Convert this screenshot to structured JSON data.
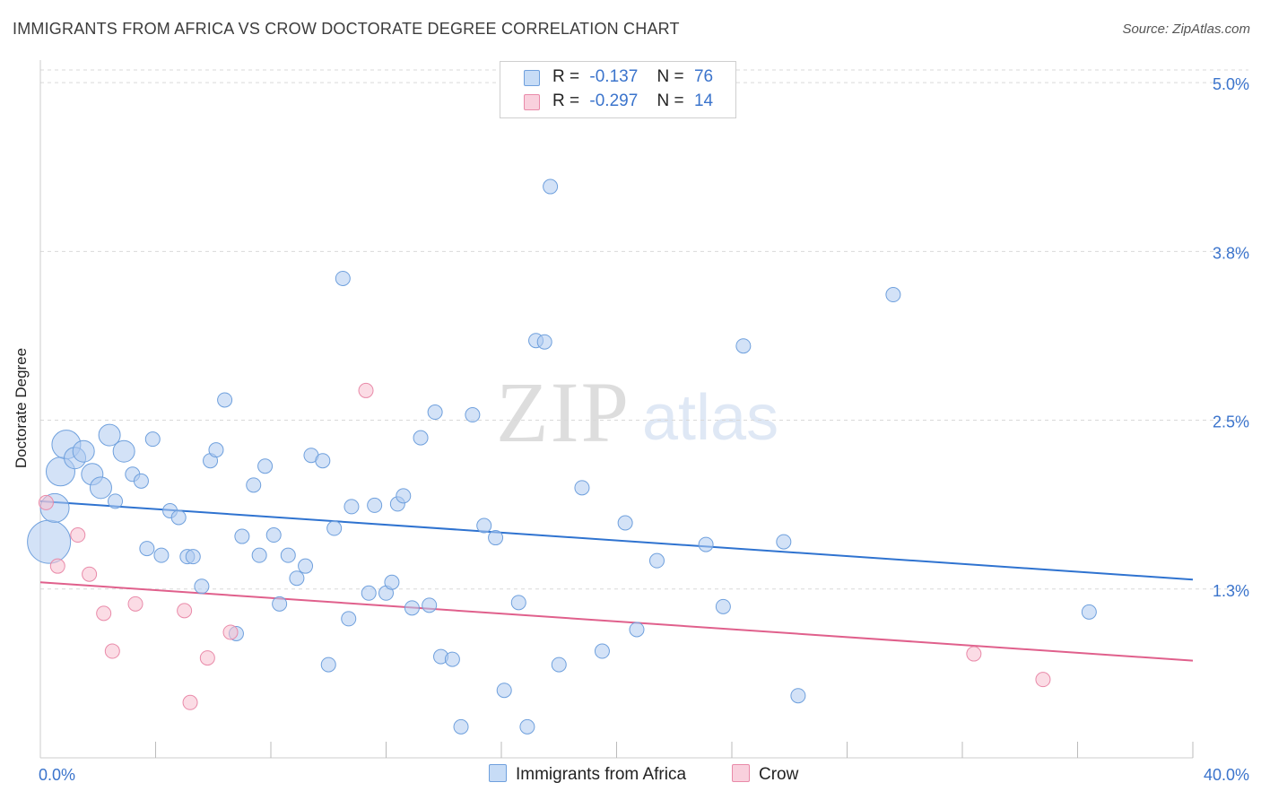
{
  "header": {
    "title": "IMMIGRANTS FROM AFRICA VS CROW DOCTORATE DEGREE CORRELATION CHART",
    "source": "Source: ZipAtlas.com"
  },
  "watermark": {
    "zip": "ZIP",
    "atlas": "atlas"
  },
  "legend": {
    "rows": [
      {
        "r_label": "R =",
        "r_value": "-0.137",
        "n_label": "N =",
        "n_value": "76",
        "color": "#aecbf0"
      },
      {
        "r_label": "R =",
        "r_value": "-0.297",
        "n_label": "N =",
        "n_value": "14",
        "color": "#f7bfd0"
      }
    ]
  },
  "bottom_legend": {
    "africa": "Immigrants from Africa",
    "crow": "Crow"
  },
  "colors": {
    "africa_fill": "#aecbf0",
    "africa_stroke": "#6fa0dd",
    "africa_line": "#2f73d0",
    "crow_fill": "#f7bfd0",
    "crow_stroke": "#e98aa9",
    "crow_line": "#e0608c",
    "tick_text": "#3b74cc",
    "grid": "#d9d9d9"
  },
  "chart_data": {
    "type": "scatter",
    "title": "IMMIGRANTS FROM AFRICA VS CROW DOCTORATE DEGREE CORRELATION CHART",
    "xlabel": "",
    "ylabel": "Doctorate Degree",
    "xlim": [
      0,
      40
    ],
    "ylim": [
      0,
      5.2
    ],
    "x_tick_labels": [
      {
        "value": 0,
        "label": "0.0%"
      },
      {
        "value": 40,
        "label": "40.0%"
      }
    ],
    "y_tick_labels": [
      {
        "value": 1.25,
        "label": "1.3%"
      },
      {
        "value": 2.5,
        "label": "2.5%"
      },
      {
        "value": 3.75,
        "label": "3.8%"
      },
      {
        "value": 5.0,
        "label": "5.0%"
      }
    ],
    "x_minor_ticks": [
      4,
      8,
      12,
      16,
      20,
      24,
      28,
      32,
      36,
      40
    ],
    "series": [
      {
        "name": "Immigrants from Africa",
        "r": -0.137,
        "n": 76,
        "trend": {
          "x": [
            0,
            40
          ],
          "y": [
            1.9,
            1.32
          ]
        },
        "points": [
          [
            0.3,
            1.6,
            3
          ],
          [
            0.5,
            1.85,
            2
          ],
          [
            0.7,
            2.12,
            2
          ],
          [
            0.9,
            2.32,
            2
          ],
          [
            1.2,
            2.22,
            1.5
          ],
          [
            1.5,
            2.27,
            1.5
          ],
          [
            1.8,
            2.1,
            1.5
          ],
          [
            2.1,
            2.0,
            1.5
          ],
          [
            2.4,
            2.39,
            1.5
          ],
          [
            2.6,
            1.9,
            1
          ],
          [
            2.9,
            2.27,
            1.5
          ],
          [
            3.2,
            2.1,
            1
          ],
          [
            3.5,
            2.05,
            1
          ],
          [
            3.7,
            1.55,
            1
          ],
          [
            3.9,
            2.36,
            1
          ],
          [
            4.2,
            1.5,
            1
          ],
          [
            4.5,
            1.83,
            1
          ],
          [
            4.8,
            1.78,
            1
          ],
          [
            5.1,
            1.49,
            1
          ],
          [
            5.3,
            1.49,
            1
          ],
          [
            5.6,
            1.27,
            1
          ],
          [
            5.9,
            2.2,
            1
          ],
          [
            6.1,
            2.28,
            1
          ],
          [
            6.4,
            2.65,
            1
          ],
          [
            6.8,
            0.92,
            1
          ],
          [
            7.0,
            1.64,
            1
          ],
          [
            7.4,
            2.02,
            1
          ],
          [
            7.6,
            1.5,
            1
          ],
          [
            7.8,
            2.16,
            1
          ],
          [
            8.1,
            1.65,
            1
          ],
          [
            8.3,
            1.14,
            1
          ],
          [
            8.6,
            1.5,
            1
          ],
          [
            8.9,
            1.33,
            1
          ],
          [
            9.2,
            1.42,
            1
          ],
          [
            9.4,
            2.24,
            1
          ],
          [
            9.8,
            2.2,
            1
          ],
          [
            10.0,
            0.69,
            1
          ],
          [
            10.2,
            1.7,
            1
          ],
          [
            10.5,
            3.55,
            1
          ],
          [
            10.7,
            1.03,
            1
          ],
          [
            10.8,
            1.86,
            1
          ],
          [
            11.4,
            1.22,
            1
          ],
          [
            11.6,
            1.87,
            1
          ],
          [
            12.0,
            1.22,
            1
          ],
          [
            12.2,
            1.3,
            1
          ],
          [
            12.4,
            1.88,
            1
          ],
          [
            12.6,
            1.94,
            1
          ],
          [
            12.9,
            1.11,
            1
          ],
          [
            13.2,
            2.37,
            1
          ],
          [
            13.5,
            1.13,
            1
          ],
          [
            13.7,
            2.56,
            1
          ],
          [
            13.9,
            0.75,
            1
          ],
          [
            14.3,
            0.73,
            1
          ],
          [
            14.6,
            0.23,
            1
          ],
          [
            15.0,
            2.54,
            1
          ],
          [
            15.4,
            1.72,
            1
          ],
          [
            15.8,
            1.63,
            1
          ],
          [
            16.1,
            0.5,
            1
          ],
          [
            16.6,
            1.15,
            1
          ],
          [
            16.9,
            0.23,
            1
          ],
          [
            17.2,
            3.09,
            1
          ],
          [
            17.5,
            3.08,
            1
          ],
          [
            17.7,
            4.23,
            1
          ],
          [
            18.0,
            0.69,
            1
          ],
          [
            18.8,
            2.0,
            1
          ],
          [
            19.5,
            0.79,
            1
          ],
          [
            20.3,
            1.74,
            1
          ],
          [
            20.7,
            0.95,
            1
          ],
          [
            21.4,
            1.46,
            1
          ],
          [
            23.1,
            1.58,
            1
          ],
          [
            23.7,
            1.12,
            1
          ],
          [
            24.4,
            3.05,
            1
          ],
          [
            25.8,
            1.6,
            1
          ],
          [
            26.3,
            0.46,
            1
          ],
          [
            29.6,
            3.43,
            1
          ],
          [
            36.4,
            1.08,
            1
          ]
        ]
      },
      {
        "name": "Crow",
        "r": -0.297,
        "n": 14,
        "trend": {
          "x": [
            0,
            40
          ],
          "y": [
            1.3,
            0.72
          ]
        },
        "points": [
          [
            0.2,
            1.89,
            1
          ],
          [
            0.6,
            1.42,
            1
          ],
          [
            1.3,
            1.65,
            1
          ],
          [
            1.7,
            1.36,
            1
          ],
          [
            2.2,
            1.07,
            1
          ],
          [
            2.5,
            0.79,
            1
          ],
          [
            3.3,
            1.14,
            1
          ],
          [
            5.0,
            1.09,
            1
          ],
          [
            5.2,
            0.41,
            1
          ],
          [
            5.8,
            0.74,
            1
          ],
          [
            6.6,
            0.93,
            1
          ],
          [
            11.3,
            2.72,
            1
          ],
          [
            32.4,
            0.77,
            1
          ],
          [
            34.8,
            0.58,
            1
          ]
        ]
      }
    ]
  }
}
